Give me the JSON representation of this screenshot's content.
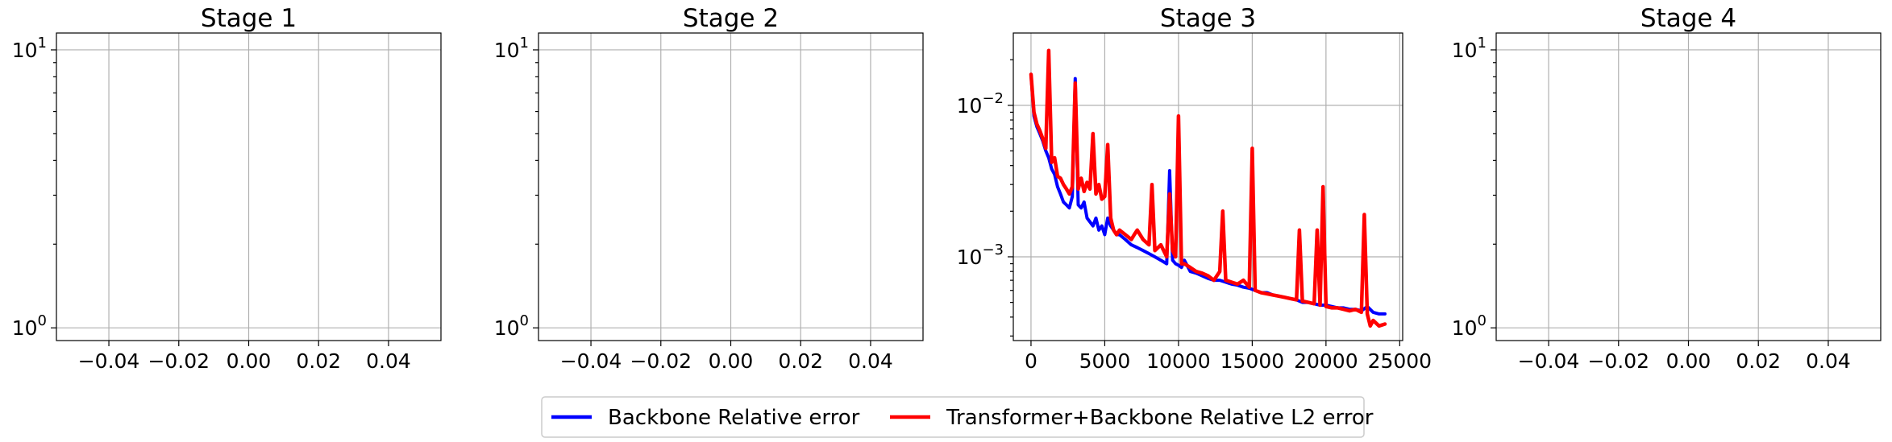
{
  "colors": {
    "backbone": "#0000ff",
    "transformer": "#ff0000"
  },
  "legend": {
    "placement": "bottom-center",
    "entries": [
      {
        "label": "Backbone Relative error",
        "color": "#0000ff"
      },
      {
        "label": "Transformer+Backbone Relative L2 error",
        "color": "#ff0000"
      }
    ]
  },
  "chart_data": [
    {
      "type": "line",
      "title": "Stage 1",
      "yscale": "log",
      "grid": true,
      "xlim": [
        -0.055,
        0.055
      ],
      "ylim": [
        0.9,
        11.5
      ],
      "xticks": [
        {
          "value": -0.04,
          "label": "−0.04"
        },
        {
          "value": -0.02,
          "label": "−0.02"
        },
        {
          "value": 0.0,
          "label": "0.00"
        },
        {
          "value": 0.02,
          "label": "0.02"
        },
        {
          "value": 0.04,
          "label": "0.04"
        }
      ],
      "yticks": [
        {
          "value": 1,
          "base": "10",
          "exp": "0"
        },
        {
          "value": 10,
          "base": "10",
          "exp": "1"
        }
      ],
      "series": []
    },
    {
      "type": "line",
      "title": "Stage 2",
      "yscale": "log",
      "grid": true,
      "xlim": [
        -0.055,
        0.055
      ],
      "ylim": [
        0.9,
        11.5
      ],
      "xticks": [
        {
          "value": -0.04,
          "label": "−0.04"
        },
        {
          "value": -0.02,
          "label": "−0.02"
        },
        {
          "value": 0.0,
          "label": "0.00"
        },
        {
          "value": 0.02,
          "label": "0.02"
        },
        {
          "value": 0.04,
          "label": "0.04"
        }
      ],
      "yticks": [
        {
          "value": 1,
          "base": "10",
          "exp": "0"
        },
        {
          "value": 10,
          "base": "10",
          "exp": "1"
        }
      ],
      "series": []
    },
    {
      "type": "line",
      "title": "Stage 3",
      "yscale": "log",
      "grid": true,
      "xlim": [
        -1200,
        25200
      ],
      "ylim": [
        0.00028,
        0.03
      ],
      "xticks": [
        {
          "value": 0,
          "label": "0"
        },
        {
          "value": 5000,
          "label": "5000"
        },
        {
          "value": 10000,
          "label": "10000"
        },
        {
          "value": 15000,
          "label": "15000"
        },
        {
          "value": 20000,
          "label": "20000"
        },
        {
          "value": 25000,
          "label": "25000"
        }
      ],
      "yticks": [
        {
          "value": 0.001,
          "base": "10",
          "exp": "−3"
        },
        {
          "value": 0.01,
          "base": "10",
          "exp": "−2"
        }
      ],
      "series": [
        {
          "name": "Backbone Relative error",
          "color": "#0000ff",
          "x": [
            0,
            200,
            400,
            600,
            800,
            1000,
            1200,
            1400,
            1600,
            1800,
            2000,
            2200,
            2400,
            2600,
            2800,
            3000,
            3200,
            3400,
            3600,
            3800,
            4000,
            4200,
            4400,
            4600,
            4800,
            5000,
            5200,
            5400,
            5600,
            5800,
            6000,
            6400,
            6800,
            7200,
            7600,
            8000,
            8400,
            8800,
            9200,
            9400,
            9600,
            9800,
            10000,
            10200,
            10400,
            10800,
            11200,
            11600,
            12000,
            12400,
            12800,
            13200,
            13600,
            14000,
            14400,
            14800,
            15200,
            15600,
            16000,
            16400,
            16800,
            17200,
            17600,
            18000,
            18400,
            18800,
            19200,
            19600,
            20000,
            20400,
            20800,
            21200,
            21600,
            22000,
            22400,
            22800,
            23200,
            23600,
            24000
          ],
          "y": [
            0.016,
            0.0085,
            0.0072,
            0.0065,
            0.0058,
            0.005,
            0.0045,
            0.0038,
            0.0035,
            0.0029,
            0.0026,
            0.0023,
            0.0022,
            0.0021,
            0.0025,
            0.015,
            0.0022,
            0.0021,
            0.0023,
            0.0018,
            0.0017,
            0.0016,
            0.0018,
            0.0015,
            0.0016,
            0.0014,
            0.0018,
            0.0016,
            0.0015,
            0.0014,
            0.0014,
            0.0013,
            0.0012,
            0.00115,
            0.0011,
            0.00105,
            0.001,
            0.00095,
            0.0009,
            0.0037,
            0.00095,
            0.0009,
            0.00088,
            0.00085,
            0.00095,
            0.0008,
            0.00078,
            0.00075,
            0.00072,
            0.0007,
            0.0007,
            0.00068,
            0.00066,
            0.00065,
            0.00063,
            0.00062,
            0.0006,
            0.00058,
            0.00058,
            0.00056,
            0.00055,
            0.00054,
            0.00053,
            0.00052,
            0.0005,
            0.0005,
            0.00049,
            0.00048,
            0.00048,
            0.00047,
            0.00046,
            0.00046,
            0.00045,
            0.00045,
            0.00044,
            0.00047,
            0.00043,
            0.00042,
            0.00042
          ]
        },
        {
          "name": "Transformer+Backbone Relative L2 error",
          "color": "#ff0000",
          "x": [
            0,
            200,
            400,
            600,
            800,
            1000,
            1200,
            1400,
            1600,
            1800,
            2000,
            2200,
            2400,
            2600,
            2800,
            3000,
            3200,
            3400,
            3600,
            3800,
            4000,
            4200,
            4400,
            4600,
            4800,
            5000,
            5200,
            5400,
            5600,
            5800,
            6000,
            6400,
            6800,
            7000,
            7200,
            7600,
            8000,
            8200,
            8400,
            8800,
            9200,
            9400,
            9600,
            9800,
            10000,
            10200,
            10400,
            10800,
            11200,
            11600,
            12000,
            12400,
            12800,
            13000,
            13200,
            13600,
            14000,
            14400,
            14800,
            15000,
            15200,
            15600,
            16000,
            16400,
            16800,
            17200,
            17600,
            18000,
            18200,
            18400,
            18800,
            19200,
            19400,
            19600,
            19800,
            20000,
            20400,
            20800,
            21200,
            21600,
            22000,
            22400,
            22600,
            22800,
            23000,
            23200,
            23600,
            24000
          ],
          "y": [
            0.016,
            0.009,
            0.0075,
            0.0068,
            0.006,
            0.0052,
            0.023,
            0.0042,
            0.0045,
            0.0034,
            0.0033,
            0.003,
            0.0028,
            0.0026,
            0.0029,
            0.014,
            0.0028,
            0.0033,
            0.0027,
            0.0031,
            0.0028,
            0.0065,
            0.0026,
            0.003,
            0.0024,
            0.0025,
            0.0055,
            0.0018,
            0.0015,
            0.0014,
            0.0015,
            0.0014,
            0.0013,
            0.0014,
            0.0015,
            0.0013,
            0.0012,
            0.003,
            0.0011,
            0.0012,
            0.001,
            0.0026,
            0.0011,
            0.001,
            0.0085,
            0.0009,
            0.0009,
            0.00085,
            0.0008,
            0.00078,
            0.00075,
            0.0007,
            0.0008,
            0.002,
            0.0007,
            0.00068,
            0.00066,
            0.0007,
            0.00063,
            0.0052,
            0.0006,
            0.00058,
            0.00057,
            0.00056,
            0.00055,
            0.00054,
            0.00053,
            0.00052,
            0.0015,
            0.00051,
            0.0005,
            0.00049,
            0.0015,
            0.00048,
            0.0029,
            0.00047,
            0.00046,
            0.00046,
            0.00045,
            0.00044,
            0.00045,
            0.00043,
            0.0019,
            0.00042,
            0.00035,
            0.00038,
            0.00035,
            0.00036
          ]
        }
      ]
    },
    {
      "type": "line",
      "title": "Stage 4",
      "yscale": "log",
      "grid": true,
      "xlim": [
        -0.055,
        0.055
      ],
      "ylim": [
        0.9,
        11.5
      ],
      "xticks": [
        {
          "value": -0.04,
          "label": "−0.04"
        },
        {
          "value": -0.02,
          "label": "−0.02"
        },
        {
          "value": 0.0,
          "label": "0.00"
        },
        {
          "value": 0.02,
          "label": "0.02"
        },
        {
          "value": 0.04,
          "label": "0.04"
        }
      ],
      "yticks": [
        {
          "value": 1,
          "base": "10",
          "exp": "0"
        },
        {
          "value": 10,
          "base": "10",
          "exp": "1"
        }
      ],
      "series": []
    }
  ]
}
